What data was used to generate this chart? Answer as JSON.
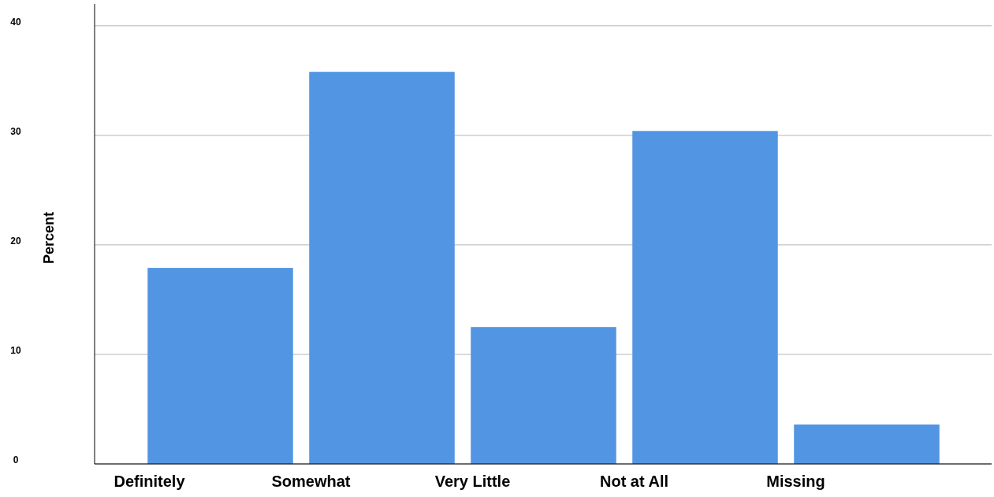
{
  "chart_data": {
    "type": "bar",
    "ylabel": "Percent",
    "categories": [
      "Definitely",
      "Somewhat",
      "Very Little",
      "Not at All",
      "Missing"
    ],
    "values": [
      17.9,
      35.8,
      12.5,
      30.4,
      3.6
    ],
    "color": "#5295e3",
    "ylim": [
      0,
      42
    ],
    "yticks": [
      0,
      10,
      20,
      30,
      40
    ],
    "grid": "y"
  }
}
